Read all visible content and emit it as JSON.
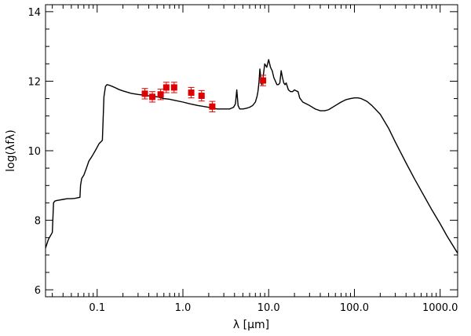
{
  "chart_data": {
    "type": "line",
    "title": "",
    "xlabel": "λ [μm]",
    "ylabel": "log(λfλ)",
    "xscale": "log",
    "xlim": [
      0.025,
      1600
    ],
    "ylim": [
      5.8,
      14.2
    ],
    "grid": false,
    "x_ticks": [
      0.1,
      1.0,
      10.0,
      100.0,
      1000.0
    ],
    "x_tick_labels": [
      "0.1",
      "1.0",
      "10.0",
      "100.0",
      "1000.0"
    ],
    "y_ticks": [
      6,
      8,
      10,
      12,
      14
    ],
    "y_tick_labels": [
      "6",
      "8",
      "10",
      "12",
      "14"
    ],
    "colors": {
      "model": "#000000",
      "points": "#dd0000",
      "errorbars": "#dd0000"
    },
    "series": [
      {
        "type": "line",
        "x": [
          0.025,
          0.027,
          0.03,
          0.031,
          0.032,
          0.034,
          0.036,
          0.04,
          0.045,
          0.05,
          0.055,
          0.06,
          0.063,
          0.064,
          0.066,
          0.07,
          0.075,
          0.08,
          0.085,
          0.09,
          0.095,
          0.1,
          0.105,
          0.11,
          0.115,
          0.117,
          0.12,
          0.125,
          0.13,
          0.14,
          0.15,
          0.16,
          0.18,
          0.2,
          0.25,
          0.3,
          0.35,
          0.4,
          0.45,
          0.5,
          0.6,
          0.7,
          0.8,
          1.0,
          1.2,
          1.5,
          2.0,
          2.5,
          3.0,
          3.5,
          3.9,
          4.1,
          4.25,
          4.4,
          4.6,
          5.0,
          5.5,
          6.0,
          6.5,
          7.0,
          7.3,
          7.5,
          7.7,
          7.9,
          8.1,
          8.3,
          8.6,
          9.0,
          9.5,
          10.0,
          10.5,
          11.0,
          11.5,
          12.0,
          12.5,
          13.0,
          13.5,
          14.0,
          14.5,
          15.0,
          15.5,
          16.0,
          17.0,
          18.0,
          19.0,
          20.0,
          21.0,
          22.0,
          23.0,
          25.0,
          30.0,
          35.0,
          40.0,
          45.0,
          50.0,
          60.0,
          70.0,
          80.0,
          90.0,
          100.0,
          110.0,
          120.0,
          140.0,
          160.0,
          200.0,
          250.0,
          300.0,
          400.0,
          500.0,
          600.0,
          800.0,
          1000.0,
          1200.0,
          1600.0
        ],
        "y": [
          7.2,
          7.45,
          7.65,
          8.5,
          8.55,
          8.57,
          8.58,
          8.6,
          8.62,
          8.62,
          8.63,
          8.65,
          8.66,
          9.0,
          9.2,
          9.3,
          9.5,
          9.7,
          9.8,
          9.9,
          10.0,
          10.1,
          10.2,
          10.25,
          10.3,
          10.8,
          11.55,
          11.85,
          11.9,
          11.88,
          11.85,
          11.82,
          11.76,
          11.72,
          11.65,
          11.62,
          11.6,
          11.58,
          11.56,
          11.55,
          11.5,
          11.48,
          11.45,
          11.4,
          11.35,
          11.3,
          11.25,
          11.2,
          11.2,
          11.2,
          11.25,
          11.35,
          11.75,
          11.3,
          11.2,
          11.2,
          11.22,
          11.25,
          11.3,
          11.4,
          11.55,
          11.7,
          11.95,
          12.35,
          12.1,
          11.9,
          12.1,
          12.5,
          12.4,
          12.62,
          12.4,
          12.3,
          12.1,
          12.0,
          11.9,
          11.9,
          11.95,
          12.3,
          12.1,
          11.95,
          11.9,
          11.95,
          11.75,
          11.7,
          11.7,
          11.75,
          11.72,
          11.7,
          11.52,
          11.4,
          11.3,
          11.2,
          11.15,
          11.15,
          11.18,
          11.3,
          11.4,
          11.47,
          11.5,
          11.52,
          11.52,
          11.5,
          11.42,
          11.3,
          11.05,
          10.65,
          10.25,
          9.65,
          9.2,
          8.85,
          8.3,
          7.9,
          7.55,
          7.05
        ]
      },
      {
        "type": "scatter",
        "x": [
          0.36,
          0.44,
          0.55,
          0.64,
          0.79,
          1.25,
          1.65,
          2.2,
          8.6
        ],
        "y": [
          11.64,
          11.55,
          11.62,
          11.82,
          11.82,
          11.67,
          11.58,
          11.27,
          12.02
        ],
        "err": [
          0.15,
          0.15,
          0.15,
          0.15,
          0.15,
          0.15,
          0.15,
          0.15,
          0.15
        ]
      }
    ]
  }
}
